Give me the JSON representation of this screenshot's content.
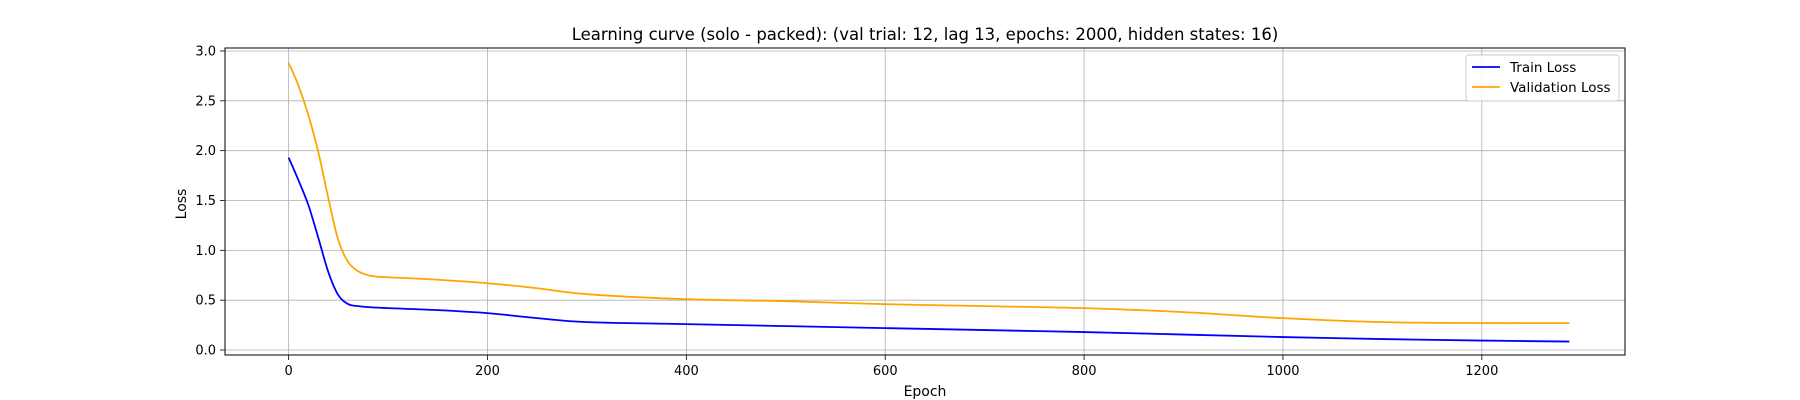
{
  "chart_data": {
    "type": "line",
    "title": "Learning curve (solo - packed): (val trial: 12, lag 13, epochs: 2000, hidden states: 16)",
    "xlabel": "Epoch",
    "ylabel": "Loss",
    "xlim": [
      -64,
      1344
    ],
    "ylim": [
      -0.05,
      3.03
    ],
    "xticks": [
      0,
      200,
      400,
      600,
      800,
      1000,
      1200
    ],
    "yticks": [
      0.0,
      0.5,
      1.0,
      1.5,
      2.0,
      2.5,
      3.0
    ],
    "xtick_labels": [
      "0",
      "200",
      "400",
      "600",
      "800",
      "1000",
      "1200"
    ],
    "ytick_labels": [
      "0.0",
      "0.5",
      "1.0",
      "1.5",
      "2.0",
      "2.5",
      "3.0"
    ],
    "grid": true,
    "legend_position": "top-right",
    "series": [
      {
        "name": "Train Loss",
        "color": "#0000ff",
        "x": [
          0,
          10,
          20,
          30,
          40,
          50,
          60,
          70,
          80,
          100,
          150,
          200,
          250,
          300,
          400,
          500,
          600,
          700,
          800,
          900,
          1000,
          1100,
          1200,
          1288
        ],
        "y": [
          1.93,
          1.7,
          1.45,
          1.12,
          0.78,
          0.55,
          0.46,
          0.44,
          0.43,
          0.42,
          0.4,
          0.37,
          0.32,
          0.28,
          0.26,
          0.24,
          0.22,
          0.2,
          0.18,
          0.155,
          0.13,
          0.11,
          0.095,
          0.085
        ]
      },
      {
        "name": "Validation Loss",
        "color": "#ffa500",
        "x": [
          0,
          10,
          20,
          30,
          40,
          50,
          60,
          70,
          80,
          90,
          100,
          150,
          200,
          250,
          300,
          400,
          500,
          600,
          700,
          800,
          900,
          1000,
          1100,
          1200,
          1288
        ],
        "y": [
          2.88,
          2.65,
          2.35,
          1.98,
          1.52,
          1.1,
          0.88,
          0.79,
          0.75,
          0.735,
          0.73,
          0.705,
          0.67,
          0.62,
          0.56,
          0.51,
          0.49,
          0.46,
          0.44,
          0.42,
          0.38,
          0.32,
          0.28,
          0.27,
          0.27
        ]
      }
    ]
  }
}
